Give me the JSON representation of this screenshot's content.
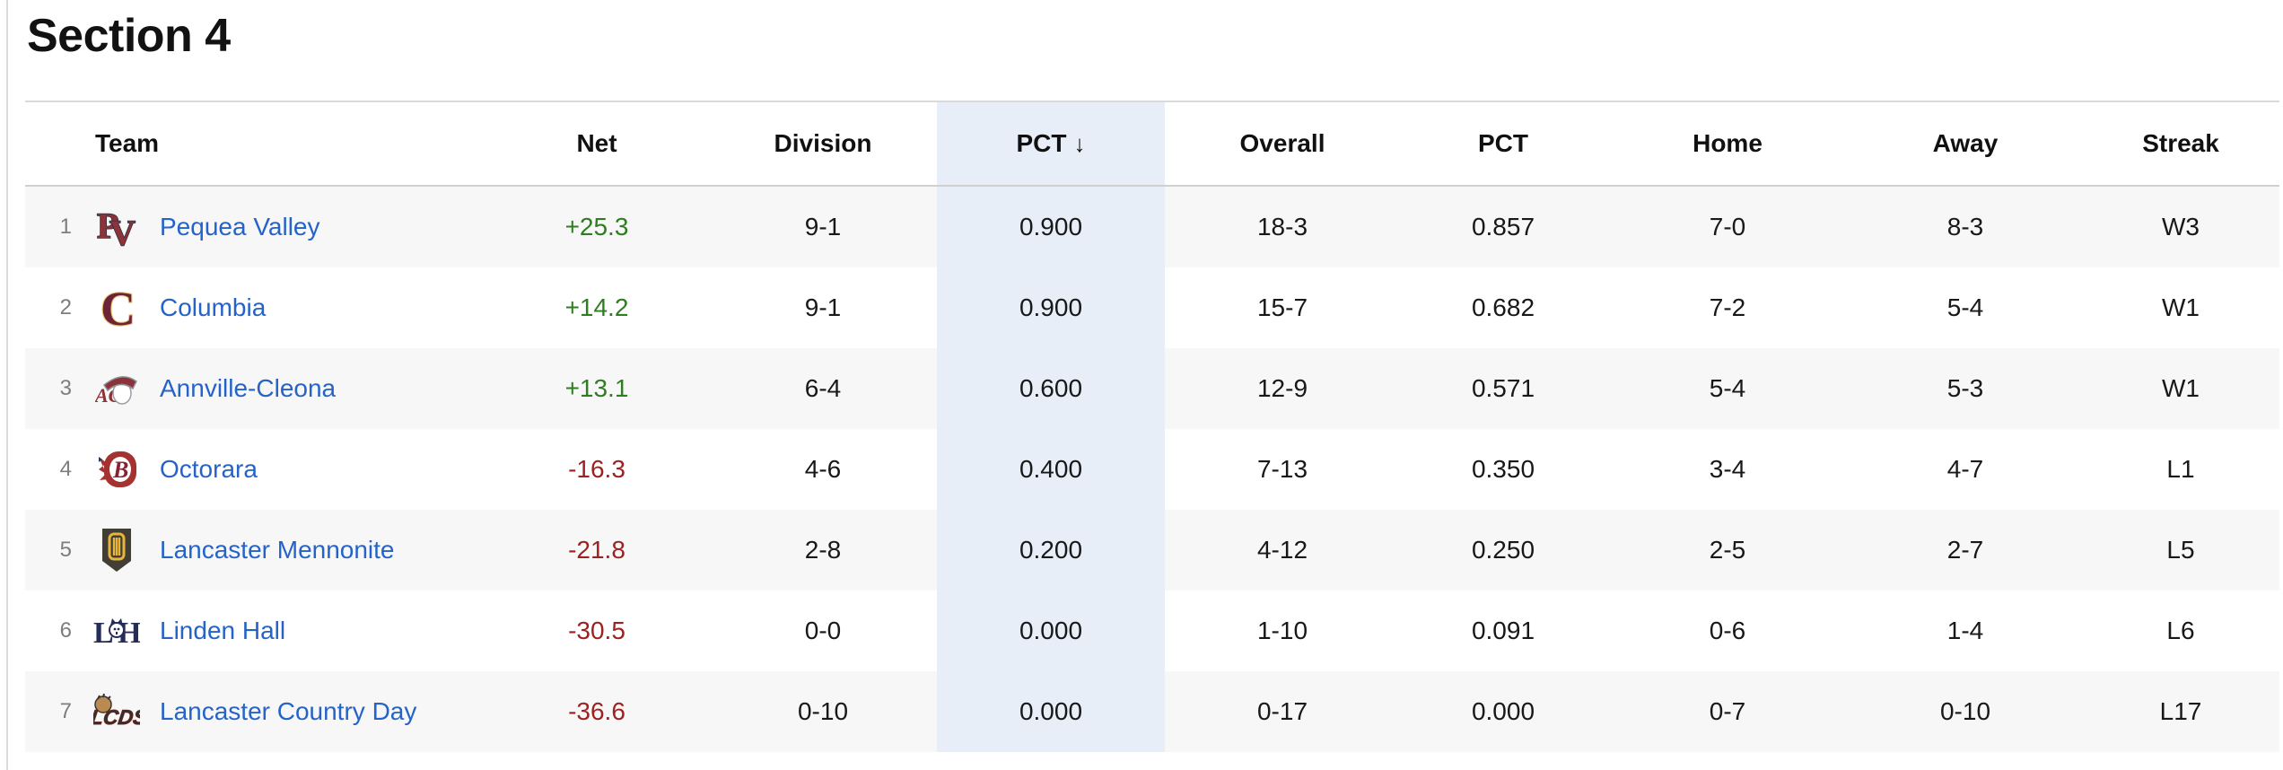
{
  "page": {
    "title": "Section 4"
  },
  "colors": {
    "link_blue": "#2563c8",
    "positive_green": "#2e7d20",
    "negative_red": "#9e2121",
    "sorted_column_bg": "#e7eef7",
    "alt_row_bg": "#f7f7f7",
    "header_text": "#111111"
  },
  "table": {
    "sort_arrow": "↓",
    "sorted_column": "PCT",
    "columns": [
      {
        "key": "team",
        "label": "Team"
      },
      {
        "key": "net",
        "label": "Net"
      },
      {
        "key": "division",
        "label": "Division"
      },
      {
        "key": "pct",
        "label": "PCT"
      },
      {
        "key": "overall",
        "label": "Overall"
      },
      {
        "key": "overall_pct",
        "label": "PCT"
      },
      {
        "key": "home",
        "label": "Home"
      },
      {
        "key": "away",
        "label": "Away"
      },
      {
        "key": "streak",
        "label": "Streak"
      }
    ],
    "rows": [
      {
        "rank": "1",
        "team": "Pequea Valley",
        "logo": "pequea-valley",
        "net": "+25.3",
        "division": "9-1",
        "pct": "0.900",
        "overall": "18-3",
        "overall_pct": "0.857",
        "home": "7-0",
        "away": "8-3",
        "streak": "W3"
      },
      {
        "rank": "2",
        "team": "Columbia",
        "logo": "columbia",
        "net": "+14.2",
        "division": "9-1",
        "pct": "0.900",
        "overall": "15-7",
        "overall_pct": "0.682",
        "home": "7-2",
        "away": "5-4",
        "streak": "W1"
      },
      {
        "rank": "3",
        "team": "Annville-Cleona",
        "logo": "annville-cleona",
        "net": "+13.1",
        "division": "6-4",
        "pct": "0.600",
        "overall": "12-9",
        "overall_pct": "0.571",
        "home": "5-4",
        "away": "5-3",
        "streak": "W1"
      },
      {
        "rank": "4",
        "team": "Octorara",
        "logo": "octorara",
        "net": "-16.3",
        "division": "4-6",
        "pct": "0.400",
        "overall": "7-13",
        "overall_pct": "0.350",
        "home": "3-4",
        "away": "4-7",
        "streak": "L1"
      },
      {
        "rank": "5",
        "team": "Lancaster Mennonite",
        "logo": "lancaster-mennonite",
        "net": "-21.8",
        "division": "2-8",
        "pct": "0.200",
        "overall": "4-12",
        "overall_pct": "0.250",
        "home": "2-5",
        "away": "2-7",
        "streak": "L5"
      },
      {
        "rank": "6",
        "team": "Linden Hall",
        "logo": "linden-hall",
        "net": "-30.5",
        "division": "0-0",
        "pct": "0.000",
        "overall": "1-10",
        "overall_pct": "0.091",
        "home": "0-6",
        "away": "1-4",
        "streak": "L6"
      },
      {
        "rank": "7",
        "team": "Lancaster Country Day",
        "logo": "lancaster-country-day",
        "net": "-36.6",
        "division": "0-10",
        "pct": "0.000",
        "overall": "0-17",
        "overall_pct": "0.000",
        "home": "0-7",
        "away": "0-10",
        "streak": "L17"
      }
    ]
  }
}
